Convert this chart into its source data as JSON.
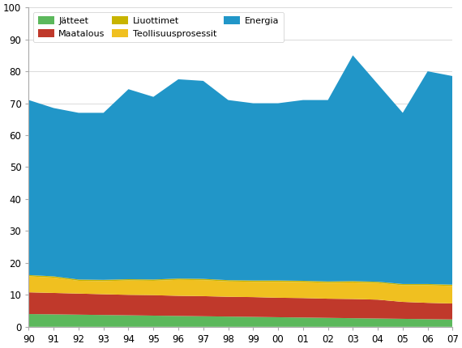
{
  "years": [
    1990,
    1991,
    1992,
    1993,
    1994,
    1995,
    1996,
    1997,
    1998,
    1999,
    2000,
    2001,
    2002,
    2003,
    2004,
    2005,
    2006,
    2007
  ],
  "jatteet": [
    4.0,
    3.9,
    3.8,
    3.7,
    3.6,
    3.5,
    3.4,
    3.3,
    3.2,
    3.1,
    3.0,
    2.9,
    2.8,
    2.7,
    2.6,
    2.5,
    2.4,
    2.3
  ],
  "maatalous": [
    6.8,
    6.7,
    6.6,
    6.5,
    6.4,
    6.4,
    6.3,
    6.3,
    6.2,
    6.2,
    6.1,
    6.1,
    6.0,
    6.0,
    5.9,
    5.3,
    5.1,
    5.0
  ],
  "teollisuus": [
    5.0,
    4.8,
    4.0,
    4.1,
    4.5,
    4.5,
    5.0,
    5.0,
    4.8,
    4.8,
    5.0,
    5.0,
    5.0,
    5.2,
    5.2,
    5.2,
    5.5,
    5.5
  ],
  "liuottimet": [
    0.4,
    0.4,
    0.4,
    0.4,
    0.4,
    0.4,
    0.4,
    0.4,
    0.4,
    0.4,
    0.4,
    0.4,
    0.4,
    0.4,
    0.4,
    0.4,
    0.4,
    0.4
  ],
  "energia": [
    54.8,
    52.7,
    52.2,
    52.3,
    59.5,
    57.2,
    62.4,
    62.0,
    56.4,
    55.5,
    55.5,
    56.6,
    56.8,
    70.7,
    61.9,
    53.6,
    66.6,
    65.3
  ],
  "colors": {
    "jatteet": "#5cb85c",
    "maatalous": "#c0392b",
    "teollisuus": "#f0c020",
    "liuottimet": "#c8b400",
    "energia": "#2196c8"
  },
  "labels": {
    "jatteet": "Jätteet",
    "maatalous": "Maatalous",
    "teollisuus": "Teollisuusprosessit",
    "liuottimet": "Liuottimet",
    "energia": "Energia"
  },
  "ylim": [
    0,
    100
  ],
  "yticks": [
    0,
    10,
    20,
    30,
    40,
    50,
    60,
    70,
    80,
    90,
    100
  ],
  "background_color": "#ffffff"
}
